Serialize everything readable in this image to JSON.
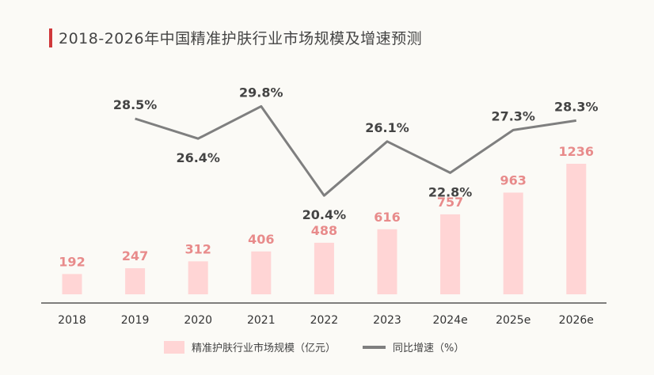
{
  "title": "2018-2026年中国精准护肤行业市场规模及增速预测",
  "colors": {
    "bar": "#ffd5d5",
    "bar_label": "#e88b8b",
    "line": "#7f7f7f",
    "accent": "#d0383a",
    "axis": "#333333"
  },
  "legend": {
    "bar": "精准护肤行业市场规模（亿元）",
    "line": "同比增速（%）"
  },
  "chart_data": {
    "type": "bar",
    "categories": [
      "2018",
      "2019",
      "2020",
      "2021",
      "2022",
      "2023",
      "2024e",
      "2025e",
      "2026e"
    ],
    "series": [
      {
        "name": "精准护肤行业市场规模（亿元）",
        "type": "bar",
        "values": [
          192,
          247,
          312,
          406,
          488,
          616,
          757,
          963,
          1236
        ],
        "labels": [
          "192",
          "247",
          "312",
          "406",
          "488",
          "616",
          "757",
          "963",
          "1236"
        ]
      },
      {
        "name": "同比增速（%）",
        "type": "line",
        "values": [
          null,
          28.5,
          26.4,
          29.8,
          20.4,
          26.1,
          22.8,
          27.3,
          28.3
        ],
        "labels": [
          "",
          "28.5%",
          "26.4%",
          "29.8%",
          "20.4%",
          "26.1%",
          "22.8%",
          "27.3%",
          "28.3%"
        ],
        "label_position": [
          "",
          "above",
          "below",
          "above",
          "below",
          "above",
          "below",
          "above",
          "above"
        ]
      }
    ],
    "title": "2018-2026年中国精准护肤行业市场规模及增速预测",
    "legend_position": "bottom"
  }
}
